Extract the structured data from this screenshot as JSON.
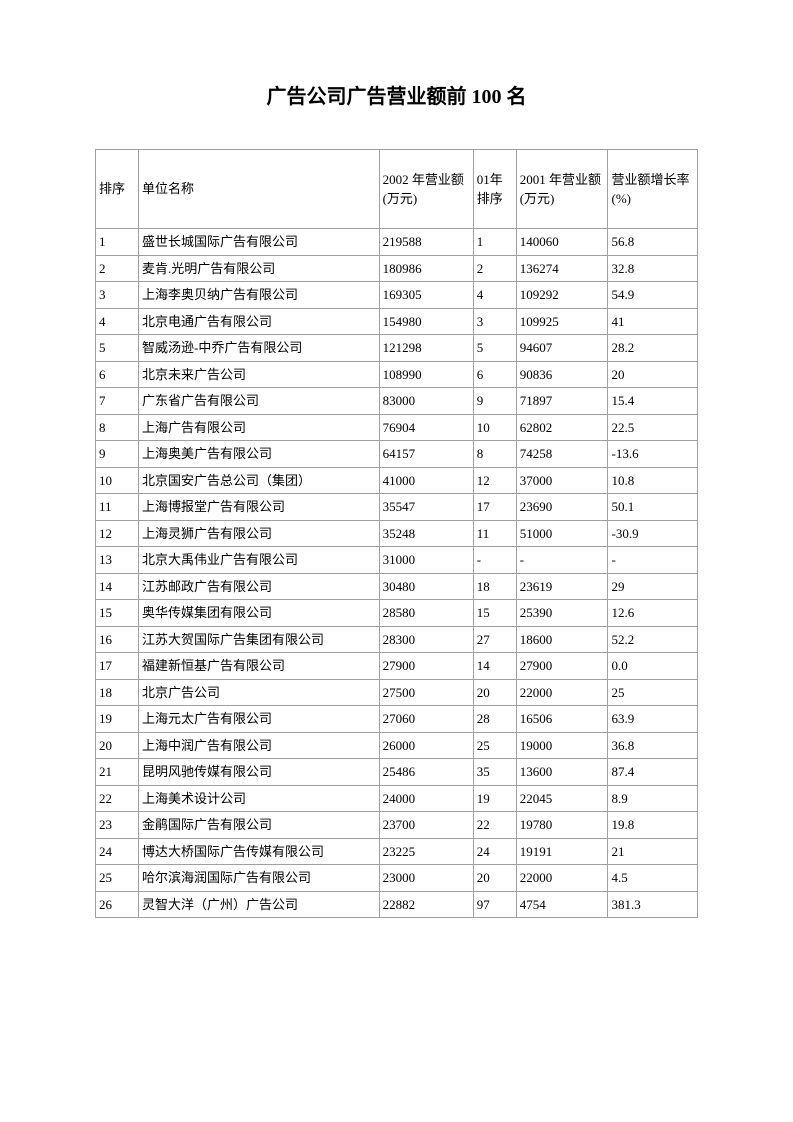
{
  "title": "广告公司广告营业额前 100 名",
  "table": {
    "columns": [
      "排序",
      "单位名称",
      "2002 年营业额(万元)",
      "01年排序",
      "2001 年营业额(万元)",
      "营业额增长率(%)"
    ],
    "rows": [
      [
        "1",
        "盛世长城国际广告有限公司",
        "219588",
        "1",
        "140060",
        "56.8"
      ],
      [
        "2",
        "麦肯.光明广告有限公司",
        "180986",
        "2",
        "136274",
        "32.8"
      ],
      [
        "3",
        "上海李奥贝纳广告有限公司",
        "169305",
        "4",
        "109292",
        "54.9"
      ],
      [
        "4",
        "北京电通广告有限公司",
        "154980",
        "3",
        "109925",
        "41"
      ],
      [
        "5",
        "智威汤逊-中乔广告有限公司",
        "121298",
        "5",
        "94607",
        "28.2"
      ],
      [
        "6",
        "北京未来广告公司",
        "108990",
        "6",
        "90836",
        "20"
      ],
      [
        "7",
        "广东省广告有限公司",
        "83000",
        "9",
        "71897",
        "15.4"
      ],
      [
        "8",
        "上海广告有限公司",
        "76904",
        "10",
        "62802",
        "22.5"
      ],
      [
        "9",
        "上海奥美广告有限公司",
        "64157",
        "8",
        "74258",
        "-13.6"
      ],
      [
        "10",
        "北京国安广告总公司（集团）",
        "41000",
        "12",
        "37000",
        "10.8"
      ],
      [
        "11",
        "上海博报堂广告有限公司",
        "35547",
        "17",
        "23690",
        "50.1"
      ],
      [
        "12",
        "上海灵狮广告有限公司",
        "35248",
        "11",
        "51000",
        "-30.9"
      ],
      [
        "13",
        "北京大禹伟业广告有限公司",
        "31000",
        "-",
        "-",
        "-"
      ],
      [
        "14",
        "江苏邮政广告有限公司",
        "30480",
        "18",
        "23619",
        "29"
      ],
      [
        "15",
        "奥华传媒集团有限公司",
        "28580",
        "15",
        "25390",
        "12.6"
      ],
      [
        "16",
        "江苏大贺国际广告集团有限公司",
        "28300",
        "27",
        "18600",
        "52.2"
      ],
      [
        "17",
        "福建新恒基广告有限公司",
        "27900",
        "14",
        "27900",
        "0.0"
      ],
      [
        "18",
        "北京广告公司",
        "27500",
        "20",
        "22000",
        "25"
      ],
      [
        "19",
        "上海元太广告有限公司",
        "27060",
        "28",
        "16506",
        "63.9"
      ],
      [
        "20",
        "上海中润广告有限公司",
        "26000",
        "25",
        "19000",
        "36.8"
      ],
      [
        "21",
        "昆明风驰传媒有限公司",
        "25486",
        "35",
        "13600",
        "87.4"
      ],
      [
        "22",
        "上海美术设计公司",
        "24000",
        "19",
        "22045",
        "8.9"
      ],
      [
        "23",
        "金鹃国际广告有限公司",
        "23700",
        "22",
        "19780",
        "19.8"
      ],
      [
        "24",
        "博达大桥国际广告传媒有限公司",
        "23225",
        "24",
        "19191",
        "21"
      ],
      [
        "25",
        "哈尔滨海润国际广告有限公司",
        "23000",
        "20",
        "22000",
        "4.5"
      ],
      [
        "26",
        "灵智大洋（广州）广告公司",
        "22882",
        "97",
        "4754",
        "381.3"
      ]
    ]
  },
  "colors": {
    "border": "#a0a0a0",
    "text": "#000000",
    "background": "#ffffff"
  }
}
